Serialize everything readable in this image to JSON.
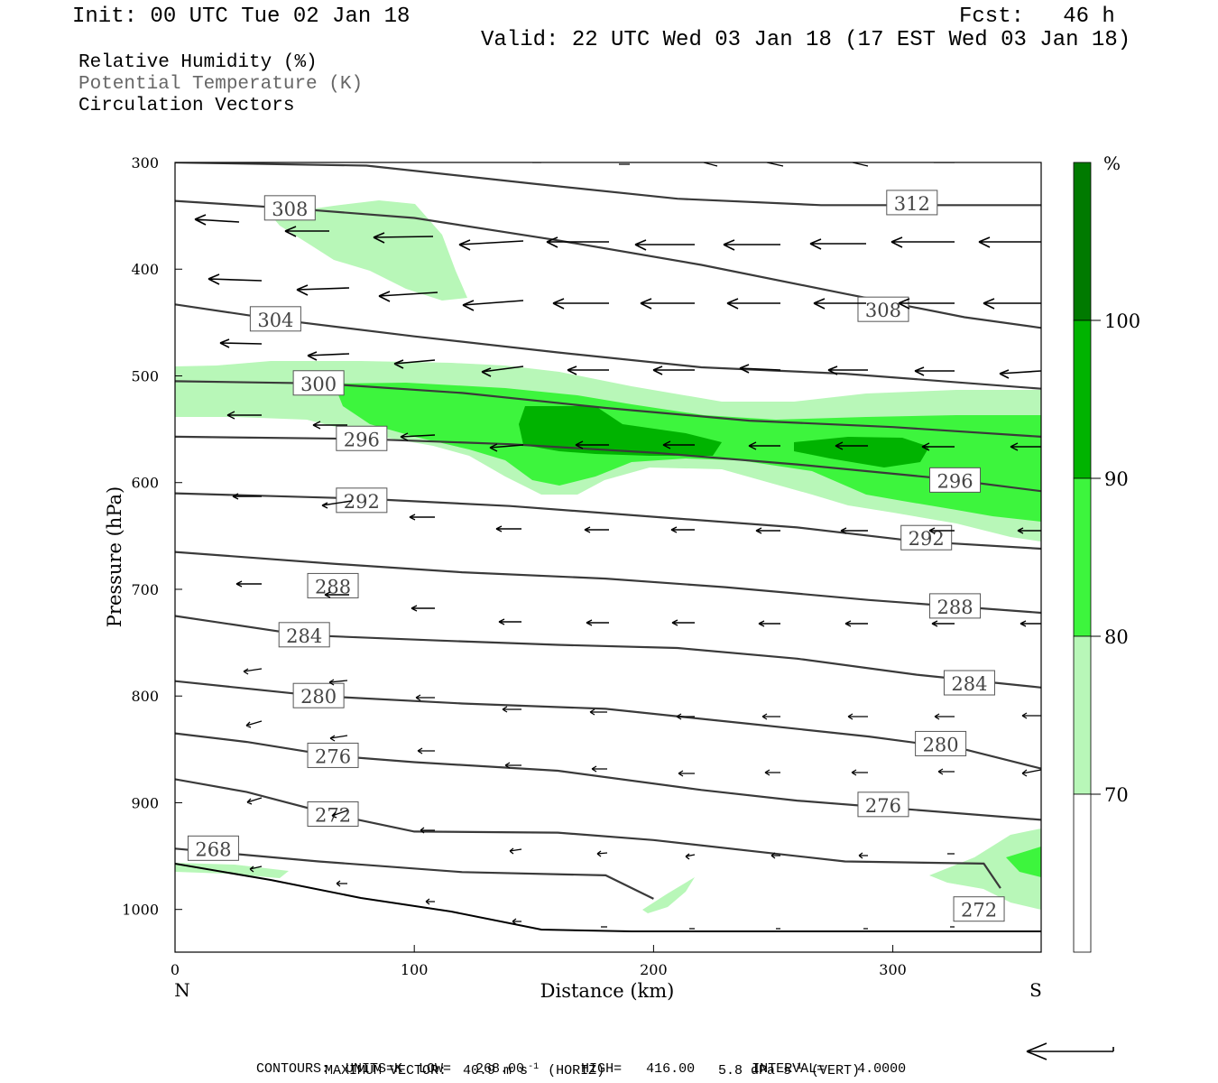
{
  "header": {
    "init": "Init: 00 UTC Tue 02 Jan 18",
    "fcst": "Fcst:   46 h",
    "valid": "Valid: 22 UTC Wed 03 Jan 18 (17 EST Wed 03 Jan 18)"
  },
  "fields": {
    "rh": "Relative Humidity (%)",
    "theta": "Potential Temperature (K)",
    "vectors": "Circulation Vectors"
  },
  "colors": {
    "rh70": "#b8f7b8",
    "rh80": "#3df53d",
    "rh90": "#00b300",
    "rh100": "#007a00",
    "theta_line": "#3a3a3a",
    "theta_label": "#444444"
  },
  "footer": {
    "max_vector": "MAXIMUM VECTOR:  40.9 m s",
    "horiz": "(HORIZ)",
    "vert_value": "5.8 dPa s",
    "vert": "(VERT)",
    "contours": "CONTOURS:  UNITS=K  LOW=   268.00       HIGH=   416.00       INTERVAL=    4.0000",
    "exp": "-1"
  },
  "chart_data": {
    "type": "contour",
    "xlabel": "Distance (km)",
    "ylabel": "Pressure (hPa)",
    "xlim": [
      0,
      362
    ],
    "ylim": [
      1040,
      300
    ],
    "x_ticks": [
      0,
      100,
      200,
      300
    ],
    "y_ticks": [
      300,
      400,
      500,
      600,
      700,
      800,
      900,
      1000
    ],
    "x_end_labels": {
      "left": "N",
      "right": "S"
    },
    "colorbar": {
      "unit": "%",
      "levels": [
        70,
        80,
        90,
        100
      ],
      "labels": [
        "70",
        "80",
        "90",
        "100"
      ]
    },
    "theta_contours": [
      {
        "value": 268,
        "label": "268",
        "label_at": [
          16,
          943
        ],
        "points": [
          [
            0,
            943
          ],
          [
            60,
            955
          ],
          [
            120,
            965
          ],
          [
            180,
            968
          ],
          [
            200,
            990
          ]
        ]
      },
      {
        "value": 272,
        "label": "272",
        "label_at": [
          66,
          911
        ],
        "points": [
          [
            0,
            878
          ],
          [
            30,
            890
          ],
          [
            66,
            911
          ],
          [
            100,
            927
          ],
          [
            160,
            928
          ],
          [
            200,
            935
          ],
          [
            280,
            955
          ],
          [
            338,
            957
          ],
          [
            345,
            980
          ]
        ]
      },
      {
        "value": 272,
        "label": "272",
        "label_at": [
          336,
          1000
        ],
        "points": []
      },
      {
        "value": 276,
        "label": "276",
        "label_at": [
          66,
          856
        ],
        "points": [
          [
            0,
            835
          ],
          [
            30,
            843
          ],
          [
            66,
            856
          ],
          [
            100,
            862
          ],
          [
            160,
            870
          ],
          [
            220,
            888
          ],
          [
            260,
            898
          ],
          [
            300,
            905
          ],
          [
            362,
            916
          ]
        ]
      },
      {
        "value": 276,
        "label": "276",
        "label_at": [
          296,
          902
        ],
        "points": []
      },
      {
        "value": 280,
        "label": "280",
        "label_at": [
          60,
          800
        ],
        "points": [
          [
            0,
            786
          ],
          [
            60,
            800
          ],
          [
            120,
            807
          ],
          [
            180,
            812
          ],
          [
            240,
            826
          ],
          [
            290,
            838
          ],
          [
            330,
            850
          ],
          [
            362,
            868
          ]
        ]
      },
      {
        "value": 280,
        "label": "280",
        "label_at": [
          320,
          845
        ],
        "points": []
      },
      {
        "value": 284,
        "label": "284",
        "label_at": [
          54,
          743
        ],
        "points": [
          [
            0,
            725
          ],
          [
            54,
            743
          ],
          [
            110,
            748
          ],
          [
            160,
            752
          ],
          [
            210,
            755
          ],
          [
            260,
            765
          ],
          [
            310,
            780
          ],
          [
            362,
            792
          ]
        ]
      },
      {
        "value": 284,
        "label": "284",
        "label_at": [
          332,
          788
        ],
        "points": []
      },
      {
        "value": 288,
        "label": "288",
        "label_at": [
          66,
          697
        ],
        "points": [
          [
            0,
            665
          ],
          [
            66,
            676
          ],
          [
            120,
            684
          ],
          [
            180,
            690
          ],
          [
            230,
            698
          ],
          [
            290,
            710
          ],
          [
            362,
            722
          ]
        ]
      },
      {
        "value": 288,
        "label": "288",
        "label_at": [
          326,
          716
        ],
        "points": []
      },
      {
        "value": 292,
        "label": "292",
        "label_at": [
          78,
          617
        ],
        "points": [
          [
            0,
            610
          ],
          [
            78,
            615
          ],
          [
            140,
            622
          ],
          [
            200,
            632
          ],
          [
            260,
            642
          ],
          [
            310,
            655
          ],
          [
            362,
            662
          ]
        ]
      },
      {
        "value": 292,
        "label": "292",
        "label_at": [
          314,
          652
        ],
        "points": []
      },
      {
        "value": 296,
        "label": "296",
        "label_at": [
          78,
          559
        ],
        "points": [
          [
            0,
            557
          ],
          [
            78,
            559
          ],
          [
            140,
            564
          ],
          [
            200,
            572
          ],
          [
            260,
            583
          ],
          [
            320,
            596
          ],
          [
            362,
            608
          ]
        ]
      },
      {
        "value": 296,
        "label": "296",
        "label_at": [
          326,
          598
        ],
        "points": []
      },
      {
        "value": 300,
        "label": "300",
        "label_at": [
          60,
          507
        ],
        "points": [
          [
            0,
            505
          ],
          [
            60,
            507
          ],
          [
            120,
            516
          ],
          [
            180,
            530
          ],
          [
            240,
            542
          ],
          [
            300,
            548
          ],
          [
            362,
            557
          ]
        ]
      },
      {
        "value": 304,
        "label": "304",
        "label_at": [
          42,
          447
        ],
        "points": [
          [
            0,
            433
          ],
          [
            42,
            447
          ],
          [
            100,
            463
          ],
          [
            160,
            478
          ],
          [
            220,
            492
          ],
          [
            280,
            498
          ],
          [
            362,
            512
          ]
        ]
      },
      {
        "value": 308,
        "label": "308",
        "label_at": [
          48,
          343
        ],
        "points": [
          [
            0,
            336
          ],
          [
            48,
            343
          ],
          [
            100,
            352
          ],
          [
            160,
            373
          ],
          [
            220,
            396
          ],
          [
            280,
            423
          ],
          [
            330,
            445
          ],
          [
            362,
            455
          ]
        ]
      },
      {
        "value": 308,
        "label": "308",
        "label_at": [
          296,
          438
        ],
        "points": []
      },
      {
        "value": 312,
        "label": "312",
        "label_at": [
          308,
          338
        ],
        "points": [
          [
            0,
            300
          ],
          [
            80,
            303
          ],
          [
            150,
            320
          ],
          [
            210,
            334
          ],
          [
            270,
            340
          ],
          [
            362,
            340
          ]
        ]
      }
    ]
  }
}
